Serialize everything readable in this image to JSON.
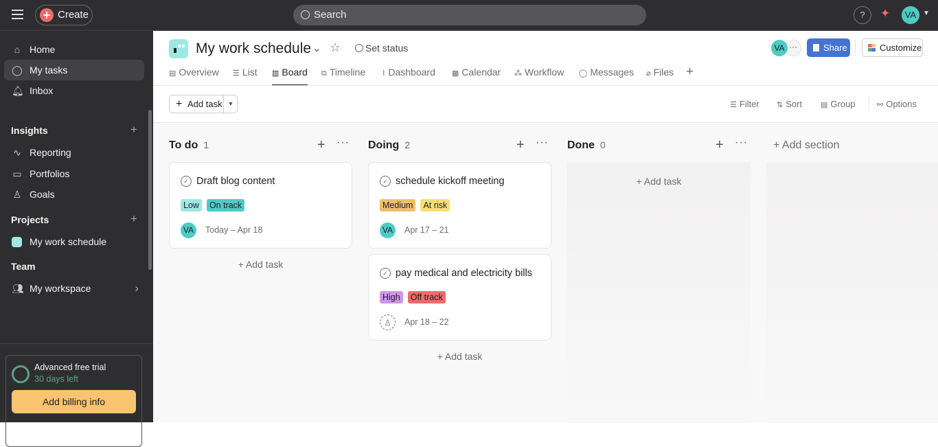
{
  "topbar": {
    "create_label": "Create",
    "search_placeholder": "Search",
    "help": "?",
    "user_initials": "VA"
  },
  "sidebar": {
    "nav": [
      {
        "label": "Home",
        "icon": "home-icon"
      },
      {
        "label": "My tasks",
        "icon": "check-circle-icon"
      },
      {
        "label": "Inbox",
        "icon": "bell-icon"
      }
    ],
    "insights_heading": "Insights",
    "insights": [
      {
        "label": "Reporting",
        "icon": "chart-line-icon"
      },
      {
        "label": "Portfolios",
        "icon": "folder-icon"
      },
      {
        "label": "Goals",
        "icon": "person-icon"
      }
    ],
    "projects_heading": "Projects",
    "projects": [
      {
        "label": "My work schedule",
        "color": "#9ee7e3"
      }
    ],
    "team_heading": "Team",
    "team": [
      {
        "label": "My workspace",
        "icon": "people-icon"
      }
    ],
    "trial": {
      "title": "Advanced free trial",
      "subtitle": "30 days left",
      "button": "Add billing info"
    }
  },
  "project": {
    "title": "My work schedule",
    "set_status": "Set status",
    "member_initials": "VA",
    "share": "Share",
    "customize": "Customize"
  },
  "tabs": [
    {
      "label": "Overview",
      "icon": "▤"
    },
    {
      "label": "List",
      "icon": "☰"
    },
    {
      "label": "Board",
      "icon": "▥",
      "active": true
    },
    {
      "label": "Timeline",
      "icon": "⧉"
    },
    {
      "label": "Dashboard",
      "icon": "⌇"
    },
    {
      "label": "Calendar",
      "icon": "▦"
    },
    {
      "label": "Workflow",
      "icon": "⁂"
    },
    {
      "label": "Messages",
      "icon": "◯"
    },
    {
      "label": "Files",
      "icon": "⌀"
    }
  ],
  "toolbar": {
    "add_task": "Add task",
    "filter": "Filter",
    "sort": "Sort",
    "group": "Group",
    "options": "Options"
  },
  "board": {
    "add_task": "+ Add task",
    "add_section": "+  Add section",
    "columns": [
      {
        "name": "To do",
        "count": "1",
        "tasks": [
          {
            "title": "Draft blog content",
            "tags": [
              {
                "label": "Low",
                "color": "#9ee7e3"
              },
              {
                "label": "On track",
                "color": "#4ecbc4"
              }
            ],
            "assignee": "VA",
            "date": "Today – Apr 18"
          }
        ]
      },
      {
        "name": "Doing",
        "count": "2",
        "tasks": [
          {
            "title": "schedule kickoff meeting",
            "tags": [
              {
                "label": "Medium",
                "color": "#f1bd6c"
              },
              {
                "label": "At risk",
                "color": "#f8df72"
              }
            ],
            "assignee": "VA",
            "date": "Apr 17 – 21"
          },
          {
            "title": "pay medical and electricity bills",
            "tags": [
              {
                "label": "High",
                "color": "#cd95ea"
              },
              {
                "label": "Off track",
                "color": "#f06a6a"
              }
            ],
            "assignee": "",
            "date": "Apr 18 – 22"
          }
        ]
      },
      {
        "name": "Done",
        "count": "0",
        "tasks": []
      }
    ]
  }
}
